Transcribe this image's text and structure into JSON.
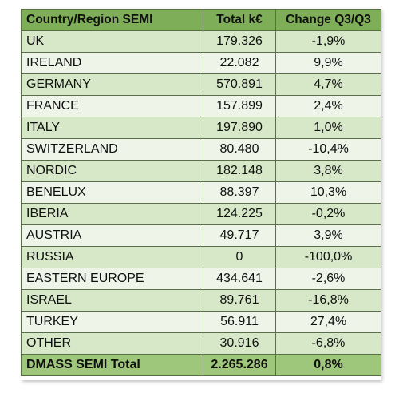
{
  "table": {
    "headers": [
      "Country/Region SEMI",
      "Total k€",
      "Change Q3/Q3"
    ],
    "rows": [
      [
        "UK",
        "179.326",
        "-1,9%"
      ],
      [
        "IRELAND",
        "22.082",
        "9,9%"
      ],
      [
        "GERMANY",
        "570.891",
        "4,7%"
      ],
      [
        "FRANCE",
        "157.899",
        "2,4%"
      ],
      [
        "ITALY",
        "197.890",
        "1,0%"
      ],
      [
        "SWITZERLAND",
        "80.480",
        "-10,4%"
      ],
      [
        "NORDIC",
        "182.148",
        "3,8%"
      ],
      [
        "BENELUX",
        "88.397",
        "10,3%"
      ],
      [
        "IBERIA",
        "124.225",
        "-0,2%"
      ],
      [
        "AUSTRIA",
        "49.717",
        "3,9%"
      ],
      [
        "RUSSIA",
        "0",
        "-100,0%"
      ],
      [
        "EASTERN EUROPE",
        "434.641",
        "-2,6%"
      ],
      [
        "ISRAEL",
        "89.761",
        "-16,8%"
      ],
      [
        "TURKEY",
        "56.911",
        "27,4%"
      ],
      [
        "OTHER",
        "30.916",
        "-6,8%"
      ]
    ],
    "total": [
      "DMASS SEMI Total",
      "2.265.286",
      "0,8%"
    ]
  },
  "colors": {
    "header": "#7fae58",
    "row_dark": "#d6e8c8",
    "row_light": "#eef5e8",
    "total": "#9ec77c",
    "border": "#5a6e4b"
  }
}
